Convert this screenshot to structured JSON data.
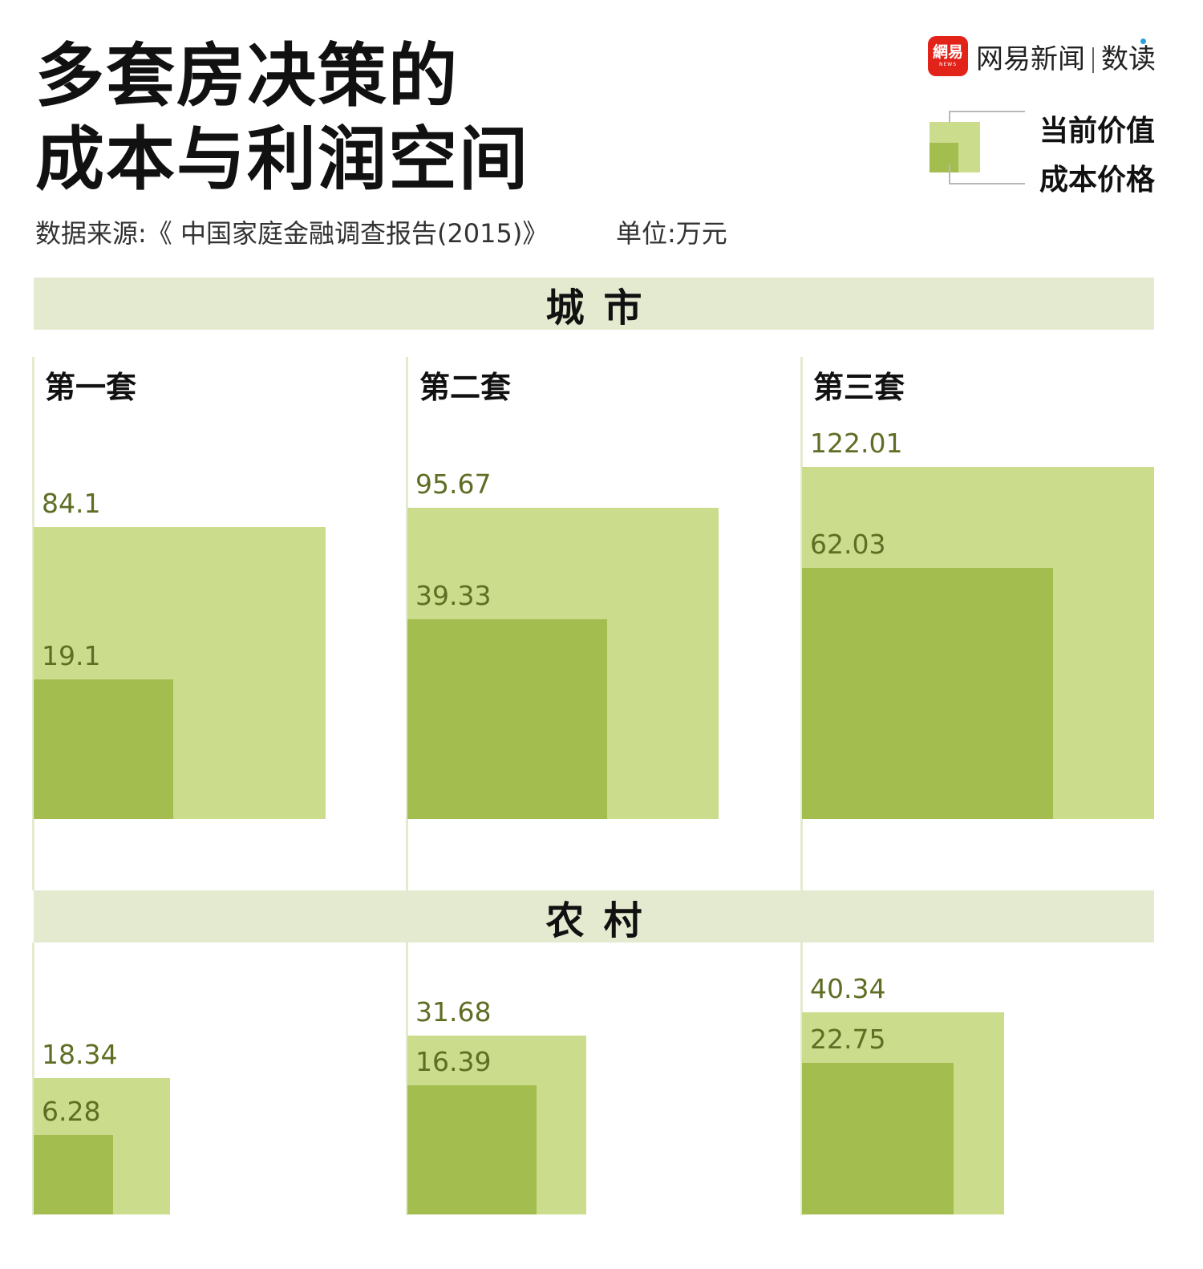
{
  "header": {
    "title_line1": "多套房决策的",
    "title_line2": "成本与利润空间",
    "source": "数据来源:《 中国家庭金融调查报告(2015)》",
    "unit": "单位:万元"
  },
  "logo": {
    "badge_main": "網易",
    "badge_sub": "NEWS",
    "brand": "网易新闻",
    "product": "数读"
  },
  "legend": {
    "outer_label": "当前价值",
    "inner_label": "成本价格"
  },
  "colors": {
    "current_value": "#cbdc8c",
    "cost_price": "#a3bd4f",
    "band": "#e4ead0",
    "value_text": "#5e6e24"
  },
  "chart_data": {
    "type": "area",
    "unit": "万元",
    "series": [
      {
        "name": "当前价值"
      },
      {
        "name": "成本价格"
      }
    ],
    "sections": [
      {
        "name": "城市",
        "categories": [
          "第一套",
          "第二套",
          "第三套"
        ],
        "current_value": [
          84.1,
          95.67,
          122.01
        ],
        "cost_price": [
          19.1,
          39.33,
          62.03
        ],
        "current_value_labels": [
          "84.1",
          "95.67",
          "122.01"
        ],
        "cost_price_labels": [
          "19.1",
          "39.33",
          "62.03"
        ]
      },
      {
        "name": "农村",
        "categories": [
          "",
          "",
          ""
        ],
        "current_value": [
          18.34,
          31.68,
          40.34
        ],
        "cost_price": [
          6.28,
          16.39,
          22.75
        ],
        "current_value_labels": [
          "18.34",
          "31.68",
          "40.34"
        ],
        "cost_price_labels": [
          "6.28",
          "16.39",
          "22.75"
        ]
      }
    ]
  }
}
